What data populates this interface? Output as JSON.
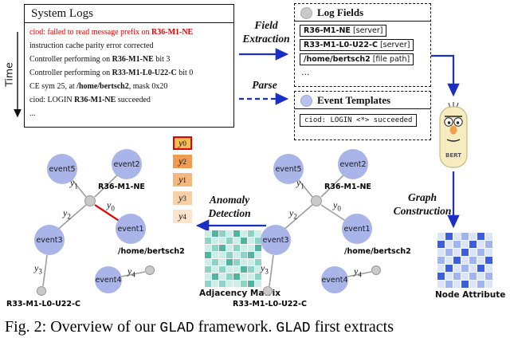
{
  "colors": {
    "anomaly_red": "#e60000",
    "arrow_blue": "#1b2fc4",
    "event_node_fill": "#a9b5e8",
    "entity_node_fill": "#c9c9c9"
  },
  "system_logs": {
    "title": "System Logs",
    "time_label": "Time",
    "lines": [
      {
        "color": "#e60000",
        "segments": [
          {
            "text": "ciod: ",
            "bold": false
          },
          {
            "text": "failed to read message prefix on ",
            "bold": false
          },
          {
            "text": "R36-M1-NE",
            "bold": true
          }
        ]
      },
      {
        "segments": [
          {
            "text": "instruction cache parity error corrected",
            "bold": false
          }
        ]
      },
      {
        "segments": [
          {
            "text": "Controller performing on ",
            "bold": false
          },
          {
            "text": "R36-M1-NE",
            "bold": true
          },
          {
            "text": " bit 3",
            "bold": false
          }
        ]
      },
      {
        "segments": [
          {
            "text": "Controller performing on ",
            "bold": false
          },
          {
            "text": "R33-M1-L0-U22-C",
            "bold": true
          },
          {
            "text": " bit 0",
            "bold": false
          }
        ]
      },
      {
        "segments": [
          {
            "text": "CE sym 25, at ",
            "bold": false
          },
          {
            "text": "/home/bertsch2",
            "bold": true
          },
          {
            "text": ", mask 0x20",
            "bold": false
          }
        ]
      },
      {
        "segments": [
          {
            "text": "ciod: LOGIN ",
            "bold": false
          },
          {
            "text": "R36-M1-NE",
            "bold": true
          },
          {
            "text": " succeeded",
            "bold": false
          }
        ]
      },
      {
        "segments": [
          {
            "text": "...",
            "bold": false
          }
        ]
      }
    ]
  },
  "flow": {
    "field_extraction": [
      "Field",
      "Extraction"
    ],
    "parse": "Parse",
    "anomaly_detection": [
      "Anomaly",
      "Detection"
    ],
    "graph_construction": [
      "Graph",
      "Construction"
    ]
  },
  "log_fields": {
    "title": "Log Fields",
    "rows": [
      {
        "name": "R36-M1-NE",
        "tag": " [server]"
      },
      {
        "name": "R33-M1-L0-U22-C",
        "tag": " [server]"
      },
      {
        "name": "/home/bertsch2",
        "tag": " [file path]"
      }
    ],
    "ellipsis": "..."
  },
  "event_templates": {
    "title": "Event Templates",
    "rows": [
      {
        "text": "ciod: LOGIN <*> succeeded"
      }
    ]
  },
  "bert": {
    "label": "BERT"
  },
  "graph": {
    "event_nodes": [
      "event5",
      "event2",
      "event1",
      "event3",
      "event4"
    ],
    "entity_labels": [
      "R36-M1-NE",
      "/home/bertsch2",
      "R33-M1-L0-U22-C"
    ],
    "edge_labels": [
      {
        "base": "y",
        "sub": "0"
      },
      {
        "base": "y",
        "sub": "1"
      },
      {
        "base": "y",
        "sub": "2"
      },
      {
        "base": "y",
        "sub": "3"
      },
      {
        "base": "y",
        "sub": "4"
      }
    ]
  },
  "y_legend": {
    "items": [
      {
        "base": "y",
        "sub": "0",
        "bg": "#f7bd4e",
        "border": "#e60000"
      },
      {
        "base": "y",
        "sub": "2",
        "bg": "#ef9c52"
      },
      {
        "base": "y",
        "sub": "1",
        "bg": "#f4b87e"
      },
      {
        "base": "y",
        "sub": "3",
        "bg": "#f8d0a6"
      },
      {
        "base": "y",
        "sub": "4",
        "bg": "#fbe3cc"
      }
    ]
  },
  "adjacency_matrix": {
    "label": "Adjacency Matrix",
    "palette": [
      "#ffffff",
      "#cdeee8",
      "#8ed4c6",
      "#52b3a1"
    ],
    "cells": [
      [
        1,
        3,
        2,
        1,
        3,
        1,
        2,
        1
      ],
      [
        2,
        1,
        1,
        2,
        1,
        3,
        1,
        2
      ],
      [
        1,
        2,
        3,
        1,
        2,
        1,
        1,
        3
      ],
      [
        3,
        1,
        1,
        2,
        1,
        2,
        3,
        1
      ],
      [
        1,
        2,
        1,
        3,
        2,
        1,
        1,
        2
      ],
      [
        2,
        1,
        2,
        1,
        1,
        3,
        2,
        1
      ],
      [
        1,
        3,
        1,
        2,
        3,
        1,
        1,
        2
      ],
      [
        2,
        1,
        2,
        1,
        1,
        2,
        3,
        1
      ]
    ]
  },
  "node_attribute": {
    "label": "Node Attribute",
    "palette": [
      "#ffffff",
      "#dce4f9",
      "#9fb4f0",
      "#3a5ede"
    ],
    "cells": [
      [
        1,
        3,
        1,
        2,
        1,
        3,
        1
      ],
      [
        3,
        1,
        2,
        1,
        3,
        1,
        2
      ],
      [
        1,
        2,
        1,
        3,
        1,
        2,
        1
      ],
      [
        2,
        1,
        3,
        1,
        2,
        1,
        3
      ],
      [
        1,
        3,
        1,
        2,
        1,
        3,
        1
      ],
      [
        3,
        1,
        2,
        1,
        2,
        1,
        2
      ],
      [
        1,
        2,
        1,
        3,
        1,
        2,
        1
      ]
    ]
  },
  "caption": {
    "segments": [
      {
        "text": "Fig. 2: Overview of our ",
        "mono": false
      },
      {
        "text": "GLAD",
        "mono": true
      },
      {
        "text": " framework. ",
        "mono": false
      },
      {
        "text": "GLAD",
        "mono": true
      },
      {
        "text": " first extracts",
        "mono": false
      }
    ]
  }
}
